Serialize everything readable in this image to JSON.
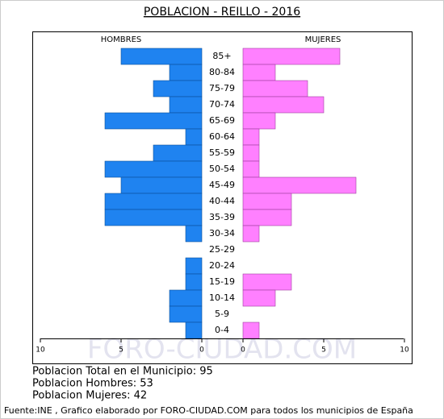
{
  "chart_data": {
    "type": "pyramid",
    "title": "POBLACION - REILLO - 2016",
    "categories": [
      "85+",
      "80-84",
      "75-79",
      "70-74",
      "65-69",
      "60-64",
      "55-59",
      "50-54",
      "45-49",
      "40-44",
      "35-39",
      "30-34",
      "25-29",
      "20-24",
      "15-19",
      "10-14",
      "5-9",
      "0-4"
    ],
    "series": [
      {
        "name": "HOMBRES",
        "color": "#1f83f0",
        "values": [
          5,
          2,
          3,
          2,
          6,
          1,
          3,
          6,
          5,
          6,
          6,
          1,
          0,
          1,
          1,
          2,
          2,
          1
        ]
      },
      {
        "name": "MUJERES",
        "color": "#ff80ff",
        "values": [
          6,
          2,
          4,
          5,
          2,
          1,
          1,
          1,
          7,
          3,
          3,
          1,
          0,
          0,
          3,
          2,
          0,
          1
        ]
      }
    ],
    "left_xlim": [
      0,
      10
    ],
    "left_xticks": [
      10,
      5,
      0
    ],
    "right_xlim": [
      0,
      10
    ],
    "right_xticks": [
      0,
      5,
      10
    ],
    "watermark": "FORO-CIUDAD.COM",
    "summary": [
      "Poblacion Total en el Municipio: 95",
      "Poblacion Hombres: 53",
      "Poblacion Mujeres: 42"
    ],
    "source": "Fuente:INE , Grafico elaborado por FORO-CIUDAD.COM para todos los municipios de España"
  }
}
